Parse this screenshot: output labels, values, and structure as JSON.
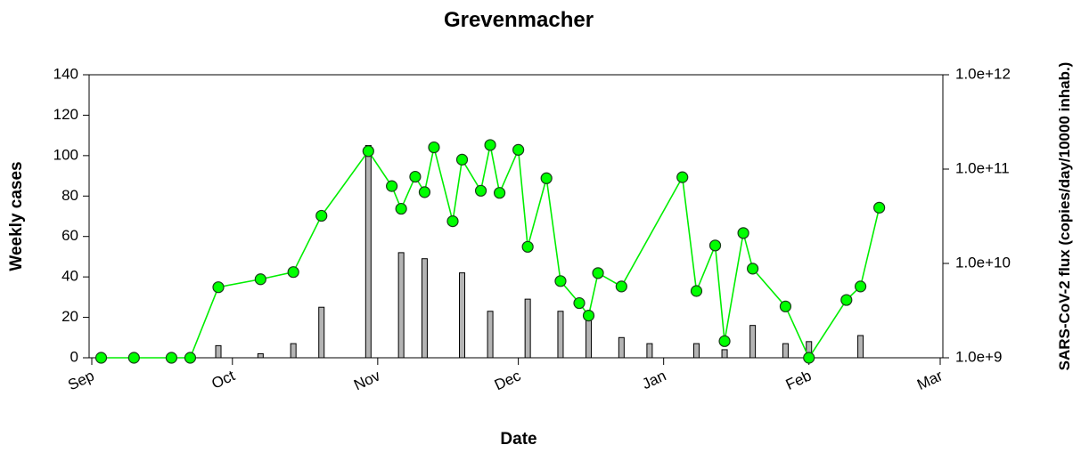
{
  "chart_data": {
    "type": "bar",
    "title": "Grevenmacher",
    "xlabel": "Date",
    "ylabel": "Weekly cases",
    "y2label": "SARS-CoV-2 flux (copies/day/10000 inhab.)",
    "xlim": [
      0,
      181
    ],
    "xticks": [
      {
        "value": 0,
        "label": "Sep"
      },
      {
        "value": 30,
        "label": "Oct"
      },
      {
        "value": 61,
        "label": "Nov"
      },
      {
        "value": 91,
        "label": "Dec"
      },
      {
        "value": 122,
        "label": "Jan"
      },
      {
        "value": 153,
        "label": "Feb"
      },
      {
        "value": 181,
        "label": "Mar"
      }
    ],
    "ylim": [
      0,
      140
    ],
    "yticks": [
      0,
      20,
      40,
      60,
      80,
      100,
      120,
      140
    ],
    "y2lim": [
      1000000000,
      1000000000000
    ],
    "y2log": true,
    "y2ticks": [
      {
        "value": 1000000000,
        "label": "1.0e+9"
      },
      {
        "value": 10000000000,
        "label": "1.0e+10"
      },
      {
        "value": 100000000000,
        "label": "1.0e+11"
      },
      {
        "value": 1000000000000,
        "label": "1.0e+12"
      }
    ],
    "series": [
      {
        "type": "bar",
        "color": "#b4b4b4",
        "x": [
          27,
          36,
          43,
          49,
          59,
          66,
          71,
          79,
          85,
          93,
          100,
          106,
          113,
          119,
          129,
          135,
          141,
          148,
          153,
          164
        ],
        "values": [
          6,
          2,
          7,
          25,
          105,
          52,
          49,
          42,
          23,
          29,
          23,
          22,
          10,
          7,
          7,
          4,
          16,
          7,
          8,
          11
        ]
      },
      {
        "type": "line",
        "axis": "y2",
        "color": "#00ee00",
        "x": [
          2,
          9,
          17,
          21,
          27,
          36,
          43,
          49,
          59,
          64,
          66,
          69,
          71,
          73,
          77,
          79,
          83,
          85,
          87,
          91,
          93,
          97,
          100,
          104,
          106,
          108,
          113,
          126,
          129,
          133,
          135,
          139,
          141,
          148,
          153,
          161,
          164,
          168
        ],
        "values": [
          1000000000,
          1000000000,
          1000000000,
          1000000000,
          5600000000,
          6800000000,
          8100000000,
          32000000000,
          155000000000,
          66000000000,
          38000000000,
          83000000000,
          57000000000,
          170000000000,
          28000000000,
          126000000000,
          59000000000,
          180000000000,
          56000000000,
          160000000000,
          15000000000,
          80000000000,
          6500000000,
          3800000000,
          2800000000,
          7900000000,
          5700000000,
          82000000000,
          5100000000,
          15500000000,
          1500000000,
          21000000000,
          8800000000,
          3500000000,
          1000000000,
          4100000000,
          5700000000,
          39000000000
        ]
      }
    ]
  }
}
